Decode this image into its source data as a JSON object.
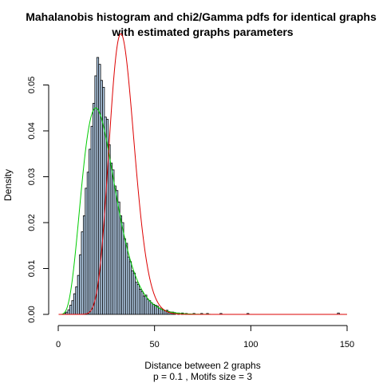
{
  "chart_data": {
    "type": "bar",
    "title_line1": "Mahalanobis histogram and chi2/Gamma pdfs for identical graphs",
    "title_line2": "with estimated graphs parameters",
    "xlabel": "Distance between 2 graphs",
    "xlabel_line2": "p =  0.1 , Motifs size =  3",
    "ylabel": "Density",
    "xlim": [
      0,
      150
    ],
    "ylim": [
      0,
      0.056
    ],
    "x_ticks": [
      0,
      50,
      100,
      150
    ],
    "y_ticks": [
      0.0,
      0.01,
      0.02,
      0.03,
      0.04,
      0.05
    ],
    "y_tick_labels": [
      "0.00",
      "0.01",
      "0.02",
      "0.03",
      "0.04",
      "0.05"
    ],
    "bin_width": 1,
    "histogram": {
      "fill_color": "#b9d3ee",
      "bins": [
        [
          3,
          0.0003
        ],
        [
          4,
          0.0005
        ],
        [
          5,
          0.001
        ],
        [
          6,
          0.002
        ],
        [
          7,
          0.003
        ],
        [
          8,
          0.0045
        ],
        [
          9,
          0.006
        ],
        [
          10,
          0.0085
        ],
        [
          11,
          0.013
        ],
        [
          12,
          0.018
        ],
        [
          13,
          0.0215
        ],
        [
          14,
          0.0275
        ],
        [
          15,
          0.031
        ],
        [
          16,
          0.036
        ],
        [
          17,
          0.041
        ],
        [
          18,
          0.046
        ],
        [
          19,
          0.052
        ],
        [
          20,
          0.056
        ],
        [
          21,
          0.0545
        ],
        [
          22,
          0.051
        ],
        [
          23,
          0.0495
        ],
        [
          24,
          0.043
        ],
        [
          25,
          0.0425
        ],
        [
          26,
          0.037
        ],
        [
          27,
          0.033
        ],
        [
          28,
          0.0315
        ],
        [
          29,
          0.028
        ],
        [
          30,
          0.027
        ],
        [
          31,
          0.0245
        ],
        [
          32,
          0.0215
        ],
        [
          33,
          0.02
        ],
        [
          34,
          0.0165
        ],
        [
          35,
          0.0155
        ],
        [
          36,
          0.0125
        ],
        [
          37,
          0.0115
        ],
        [
          38,
          0.0095
        ],
        [
          39,
          0.009
        ],
        [
          40,
          0.007
        ],
        [
          41,
          0.0065
        ],
        [
          42,
          0.0055
        ],
        [
          43,
          0.005
        ],
        [
          44,
          0.004
        ],
        [
          45,
          0.0042
        ],
        [
          46,
          0.0033
        ],
        [
          47,
          0.003
        ],
        [
          48,
          0.0025
        ],
        [
          49,
          0.0022
        ],
        [
          50,
          0.002
        ],
        [
          51,
          0.0018
        ],
        [
          52,
          0.0014
        ],
        [
          53,
          0.0012
        ],
        [
          54,
          0.001
        ],
        [
          55,
          0.0008
        ],
        [
          56,
          0.0009
        ],
        [
          57,
          0.0006
        ],
        [
          58,
          0.0005
        ],
        [
          59,
          0.0005
        ],
        [
          60,
          0.0004
        ],
        [
          62,
          0.0003
        ],
        [
          64,
          0.0003
        ],
        [
          66,
          0.0002
        ],
        [
          70,
          0.0002
        ],
        [
          74,
          0.0002
        ],
        [
          77,
          0.0002
        ],
        [
          84,
          0.0002
        ],
        [
          98,
          0.0002
        ],
        [
          145,
          0.0003
        ]
      ]
    },
    "series": [
      {
        "kind": "gamma",
        "color": "#00cc00",
        "shape": 6.0,
        "scale": 3.9
      },
      {
        "kind": "gamma",
        "color": "#dd0000",
        "shape": 26.0,
        "scale": 1.3
      }
    ]
  }
}
